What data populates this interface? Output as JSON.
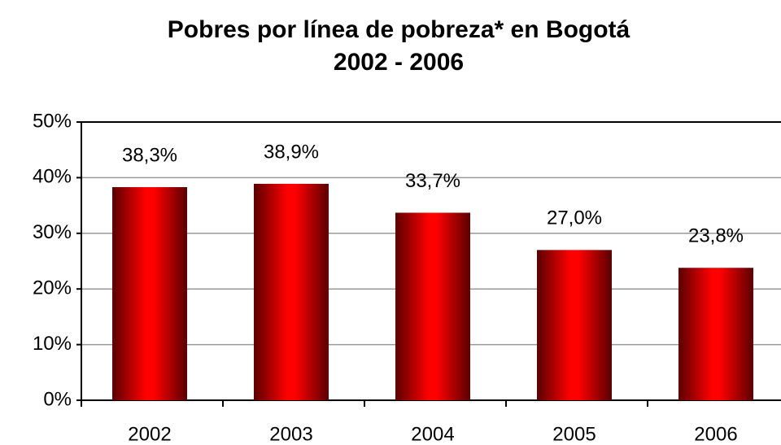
{
  "chart_data": {
    "type": "bar",
    "title": "Pobres por línea de pobreza* en Bogotá",
    "subtitle": "2002 - 2006",
    "categories": [
      "2002",
      "2003",
      "2004",
      "2005",
      "2006"
    ],
    "values": [
      38.3,
      38.9,
      33.7,
      27.0,
      23.8
    ],
    "value_labels": [
      "38,3%",
      "38,9%",
      "33,7%",
      "27,0%",
      "23,8%"
    ],
    "color": "#ff0000",
    "ylim": [
      0,
      50
    ],
    "yticks": [
      {
        "value": 0,
        "label": "0%"
      },
      {
        "value": 10,
        "label": "10%"
      },
      {
        "value": 20,
        "label": "20%"
      },
      {
        "value": 30,
        "label": "30%"
      },
      {
        "value": 40,
        "label": "40%"
      },
      {
        "value": 50,
        "label": "50%"
      }
    ],
    "grid": true
  }
}
